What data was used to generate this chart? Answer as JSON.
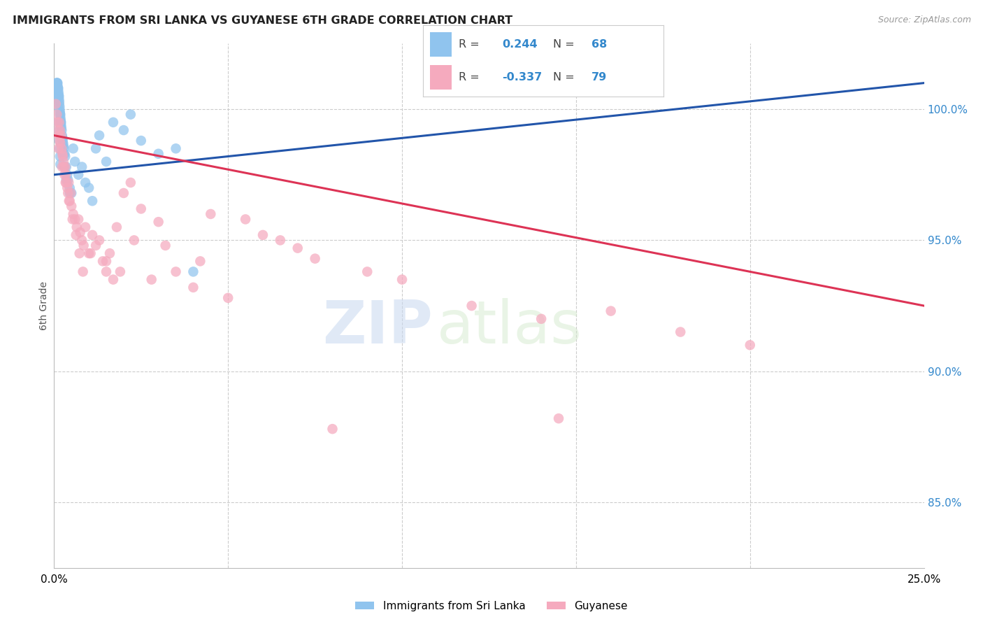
{
  "title": "IMMIGRANTS FROM SRI LANKA VS GUYANESE 6TH GRADE CORRELATION CHART",
  "source": "Source: ZipAtlas.com",
  "ylabel": "6th Grade",
  "ytick_vals": [
    85.0,
    90.0,
    95.0,
    100.0
  ],
  "ytick_labels": [
    "85.0%",
    "90.0%",
    "95.0%",
    "100.0%"
  ],
  "xmin": 0.0,
  "xmax": 25.0,
  "ymin": 82.5,
  "ymax": 102.5,
  "legend_r_blue": "0.244",
  "legend_n_blue": "68",
  "legend_r_pink": "-0.337",
  "legend_n_pink": "79",
  "legend_label_blue": "Immigrants from Sri Lanka",
  "legend_label_pink": "Guyanese",
  "blue_color": "#90C4EE",
  "pink_color": "#F5AABE",
  "blue_line_color": "#2255AA",
  "pink_line_color": "#DD3355",
  "watermark_text": "ZIPatlas",
  "blue_x": [
    0.05,
    0.06,
    0.07,
    0.08,
    0.09,
    0.1,
    0.1,
    0.11,
    0.12,
    0.12,
    0.13,
    0.13,
    0.14,
    0.14,
    0.15,
    0.15,
    0.16,
    0.16,
    0.17,
    0.17,
    0.18,
    0.18,
    0.19,
    0.19,
    0.2,
    0.2,
    0.21,
    0.22,
    0.23,
    0.24,
    0.25,
    0.26,
    0.27,
    0.28,
    0.3,
    0.32,
    0.35,
    0.38,
    0.4,
    0.45,
    0.5,
    0.55,
    0.6,
    0.7,
    0.8,
    0.9,
    1.0,
    1.1,
    1.2,
    1.3,
    1.5,
    1.7,
    2.0,
    2.2,
    2.5,
    3.0,
    3.5,
    4.0,
    0.13,
    0.14,
    0.15,
    0.16,
    0.17,
    0.18,
    0.25,
    0.3,
    0.35,
    0.45
  ],
  "blue_y": [
    100.8,
    100.9,
    101.0,
    101.0,
    101.0,
    101.0,
    100.9,
    100.8,
    100.8,
    100.7,
    100.6,
    100.5,
    100.4,
    100.5,
    100.3,
    100.2,
    100.1,
    100.0,
    99.9,
    99.8,
    99.7,
    99.8,
    99.6,
    99.5,
    99.4,
    99.5,
    99.3,
    99.2,
    99.0,
    98.9,
    98.8,
    98.7,
    98.6,
    98.5,
    98.3,
    98.2,
    97.8,
    97.5,
    97.3,
    97.0,
    96.8,
    98.5,
    98.0,
    97.5,
    97.8,
    97.2,
    97.0,
    96.5,
    98.5,
    99.0,
    98.0,
    99.5,
    99.2,
    99.8,
    98.8,
    98.3,
    98.5,
    93.8,
    99.5,
    99.2,
    98.8,
    98.5,
    98.2,
    97.9,
    98.3,
    97.8,
    97.3,
    96.8
  ],
  "pink_x": [
    0.05,
    0.08,
    0.1,
    0.12,
    0.14,
    0.15,
    0.16,
    0.17,
    0.18,
    0.2,
    0.22,
    0.24,
    0.25,
    0.27,
    0.28,
    0.3,
    0.32,
    0.34,
    0.35,
    0.38,
    0.4,
    0.42,
    0.45,
    0.48,
    0.5,
    0.55,
    0.6,
    0.65,
    0.7,
    0.75,
    0.8,
    0.85,
    0.9,
    1.0,
    1.1,
    1.2,
    1.3,
    1.4,
    1.5,
    1.6,
    1.7,
    1.8,
    2.0,
    2.2,
    2.5,
    2.8,
    3.0,
    3.5,
    4.0,
    4.5,
    5.0,
    5.5,
    6.0,
    7.0,
    7.5,
    8.0,
    10.0,
    12.0,
    14.0,
    16.0,
    18.0,
    20.0,
    0.13,
    0.23,
    0.33,
    0.43,
    0.53,
    0.63,
    0.73,
    0.83,
    1.05,
    1.5,
    1.9,
    2.3,
    3.2,
    4.2,
    6.5,
    9.0,
    14.5
  ],
  "pink_y": [
    100.2,
    99.8,
    99.5,
    99.2,
    99.0,
    99.5,
    98.8,
    99.2,
    98.7,
    99.0,
    98.5,
    98.3,
    98.2,
    98.0,
    97.8,
    97.5,
    97.8,
    97.5,
    97.2,
    97.0,
    96.8,
    97.2,
    96.5,
    96.8,
    96.3,
    96.0,
    95.8,
    95.5,
    95.8,
    95.3,
    95.0,
    94.8,
    95.5,
    94.5,
    95.2,
    94.8,
    95.0,
    94.2,
    93.8,
    94.5,
    93.5,
    95.5,
    96.8,
    97.2,
    96.2,
    93.5,
    95.7,
    93.8,
    93.2,
    96.0,
    92.8,
    95.8,
    95.2,
    94.7,
    94.3,
    87.8,
    93.5,
    92.5,
    92.0,
    92.3,
    91.5,
    91.0,
    98.5,
    97.8,
    97.2,
    96.5,
    95.8,
    95.2,
    94.5,
    93.8,
    94.5,
    94.2,
    93.8,
    95.0,
    94.8,
    94.2,
    95.0,
    93.8,
    88.2
  ]
}
